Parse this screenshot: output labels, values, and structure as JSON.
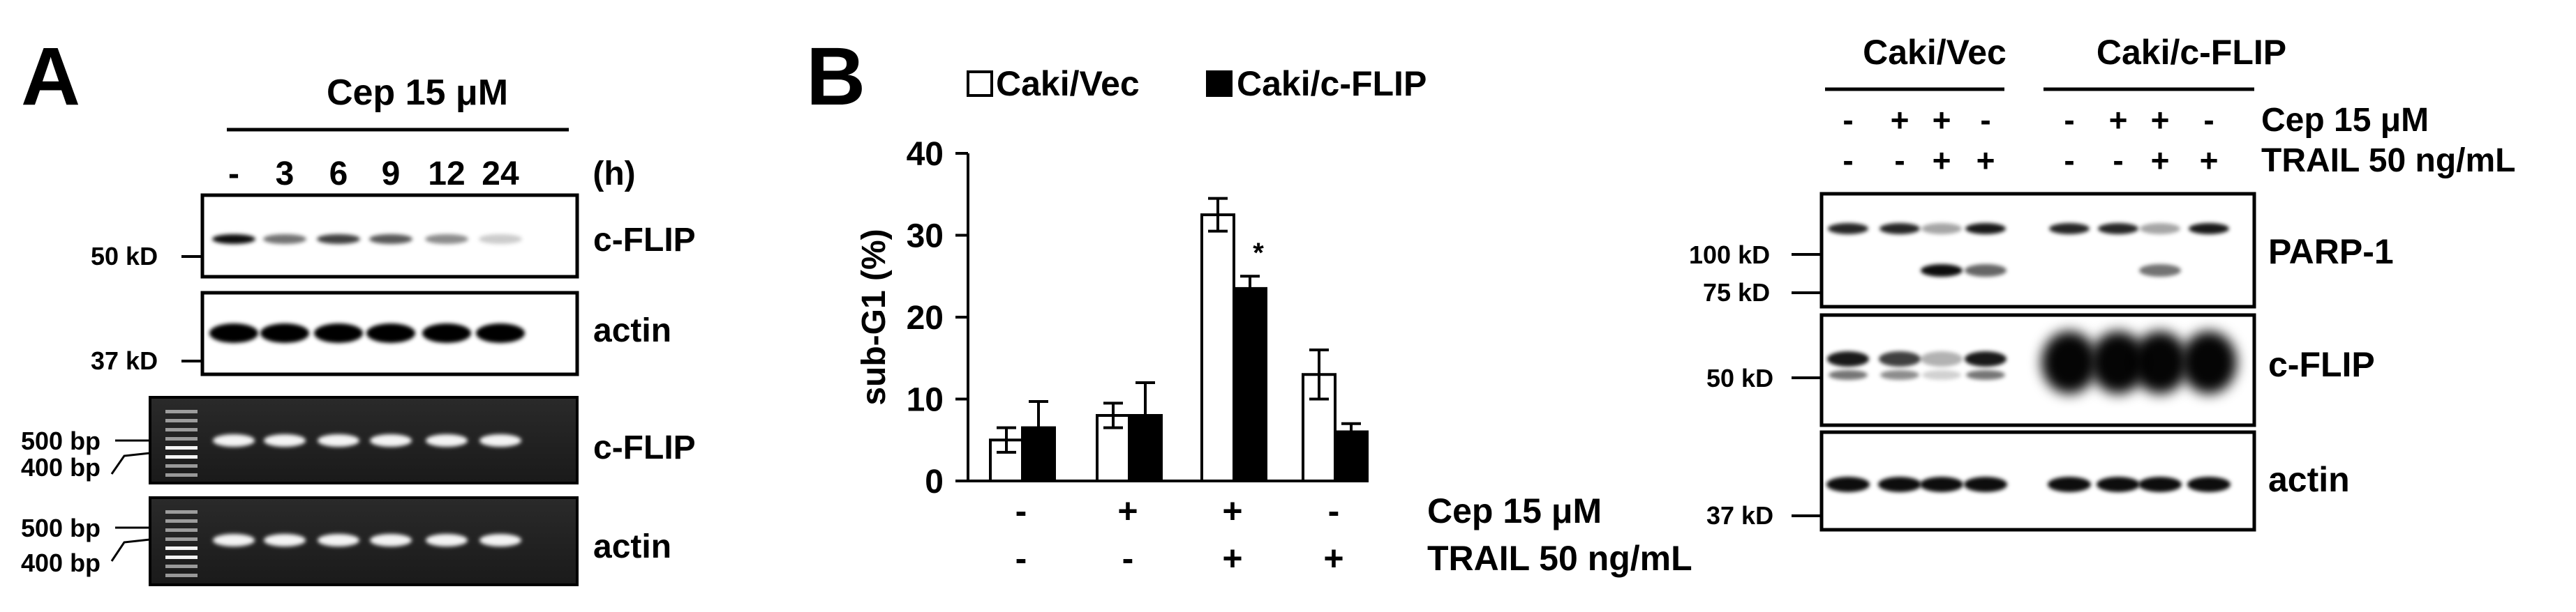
{
  "panel_a": {
    "letter": "A",
    "treatment_label": "Cep 15 μM",
    "time_unit": "(h)",
    "times": [
      "-",
      "3",
      "6",
      "9",
      "12",
      "24"
    ],
    "western": {
      "blots": [
        {
          "label": "c-FLIP",
          "marker": "50 kD",
          "bands": [
            0.95,
            0.55,
            0.75,
            0.65,
            0.45,
            0.2
          ]
        },
        {
          "label": "actin",
          "marker": "37 kD",
          "bands": [
            1,
            1,
            1,
            1,
            1,
            1
          ]
        }
      ]
    },
    "rtpcr": {
      "gels": [
        {
          "label": "c-FLIP",
          "markers": [
            "500 bp",
            "400 bp"
          ]
        },
        {
          "label": "actin",
          "markers": [
            "500 bp",
            "400 bp"
          ]
        }
      ]
    }
  },
  "panel_b": {
    "letter": "B",
    "legend": [
      {
        "name": "Caki/Vec",
        "color": "#ffffff"
      },
      {
        "name": "Caki/c-FLIP",
        "color": "#000000"
      }
    ],
    "condition_rows": [
      {
        "label": "Cep 15 μM",
        "values": [
          "-",
          "+",
          "+",
          "-"
        ]
      },
      {
        "label": "TRAIL 50 ng/mL",
        "values": [
          "-",
          "-",
          "+",
          "+"
        ]
      }
    ],
    "significance_mark": "*"
  },
  "chart_data": {
    "type": "bar",
    "categories": [
      "-/-",
      "+/-",
      "+/+",
      "-/+"
    ],
    "series": [
      {
        "name": "Caki/Vec",
        "values": [
          5,
          8,
          32.5,
          13
        ],
        "errors": [
          1.5,
          1.5,
          2,
          3
        ]
      },
      {
        "name": "Caki/c-FLIP",
        "values": [
          6.5,
          8,
          23.5,
          6
        ],
        "errors": [
          3.2,
          4,
          1.5,
          1
        ]
      }
    ],
    "ylabel": "sub-G1 (%)",
    "yticks": [
      0,
      10,
      20,
      30,
      40
    ],
    "ylim": [
      0,
      40
    ],
    "grid": false
  },
  "panel_c": {
    "groups": [
      "Caki/Vec",
      "Caki/c-FLIP"
    ],
    "condition_rows": [
      {
        "label": "Cep 15 μM",
        "values": [
          "-",
          "+",
          "+",
          "-",
          "-",
          "+",
          "+",
          "-"
        ]
      },
      {
        "label": "TRAIL 50 ng/mL",
        "values": [
          "-",
          "-",
          "+",
          "+",
          "-",
          "-",
          "+",
          "+"
        ]
      }
    ],
    "blots": [
      {
        "label": "PARP-1",
        "markers": [
          "100 kD",
          "75 kD"
        ]
      },
      {
        "label": "c-FLIP",
        "markers": [
          "50 kD"
        ]
      },
      {
        "label": "actin",
        "markers": [
          "37 kD"
        ]
      }
    ]
  }
}
